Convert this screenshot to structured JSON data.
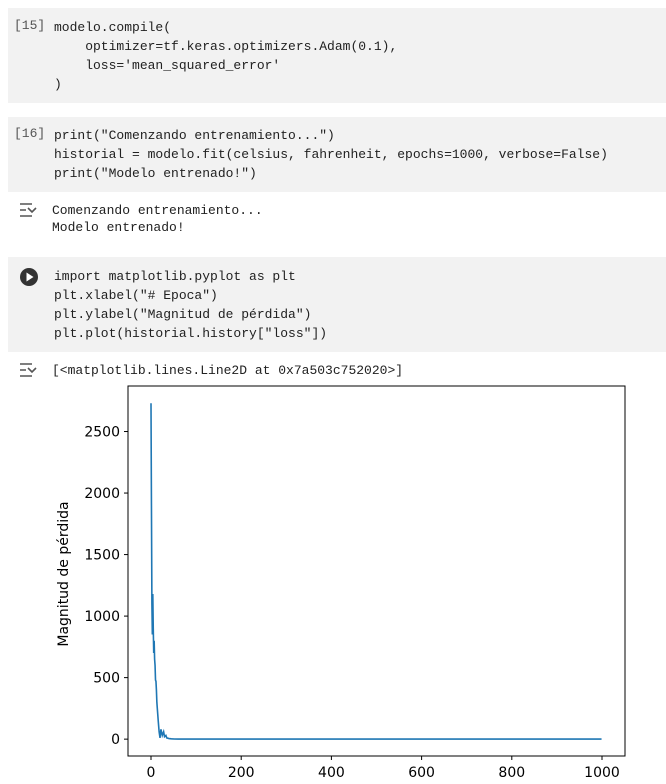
{
  "cells": [
    {
      "count": "[15]",
      "lines": [
        "modelo.compile(",
        "    optimizer=tf.keras.optimizers.Adam(0.1),",
        "    loss='mean_squared_error'",
        ")"
      ]
    },
    {
      "count": "[16]",
      "lines": [
        "print(\"Comenzando entrenamiento...\")",
        "historial = modelo.fit(celsius, fahrenheit, epochs=1000, verbose=False)",
        "print(\"Modelo entrenado!\")"
      ],
      "output": [
        "Comenzando entrenamiento...",
        "Modelo entrenado!"
      ]
    },
    {
      "lines": [
        "import matplotlib.pyplot as plt",
        "plt.xlabel(\"# Epoca\")",
        "plt.ylabel(\"Magnitud de pérdida\")",
        "plt.plot(historial.history[\"loss\"])"
      ],
      "output": [
        "[<matplotlib.lines.Line2D at 0x7a503c752020>]"
      ]
    }
  ],
  "chart_data": {
    "type": "line",
    "ylabel": "Magnitud de pérdida",
    "x": [
      0,
      1,
      2,
      3,
      4,
      5,
      6,
      7,
      8,
      9,
      10,
      11,
      12,
      13,
      14,
      15,
      16,
      18,
      20,
      22,
      25,
      28,
      30,
      33,
      35,
      40,
      45,
      50,
      60,
      80,
      100,
      200,
      400,
      600,
      800,
      999
    ],
    "series": [
      {
        "name": "loss",
        "color": "#1f77b4",
        "values": [
          2730,
          1900,
          1100,
          850,
          1180,
          900,
          700,
          800,
          650,
          600,
          480,
          470,
          400,
          300,
          250,
          200,
          150,
          60,
          10,
          80,
          30,
          60,
          20,
          30,
          10,
          5,
          3,
          2,
          1,
          1,
          1,
          1,
          1,
          1,
          1,
          1
        ]
      }
    ],
    "xlim": [
      -51,
      1051
    ],
    "ylim": [
      -137,
      2870
    ],
    "xticks": [
      0,
      200,
      400,
      600,
      800,
      1000
    ],
    "yticks": [
      0,
      500,
      1000,
      1500,
      2000,
      2500
    ]
  }
}
